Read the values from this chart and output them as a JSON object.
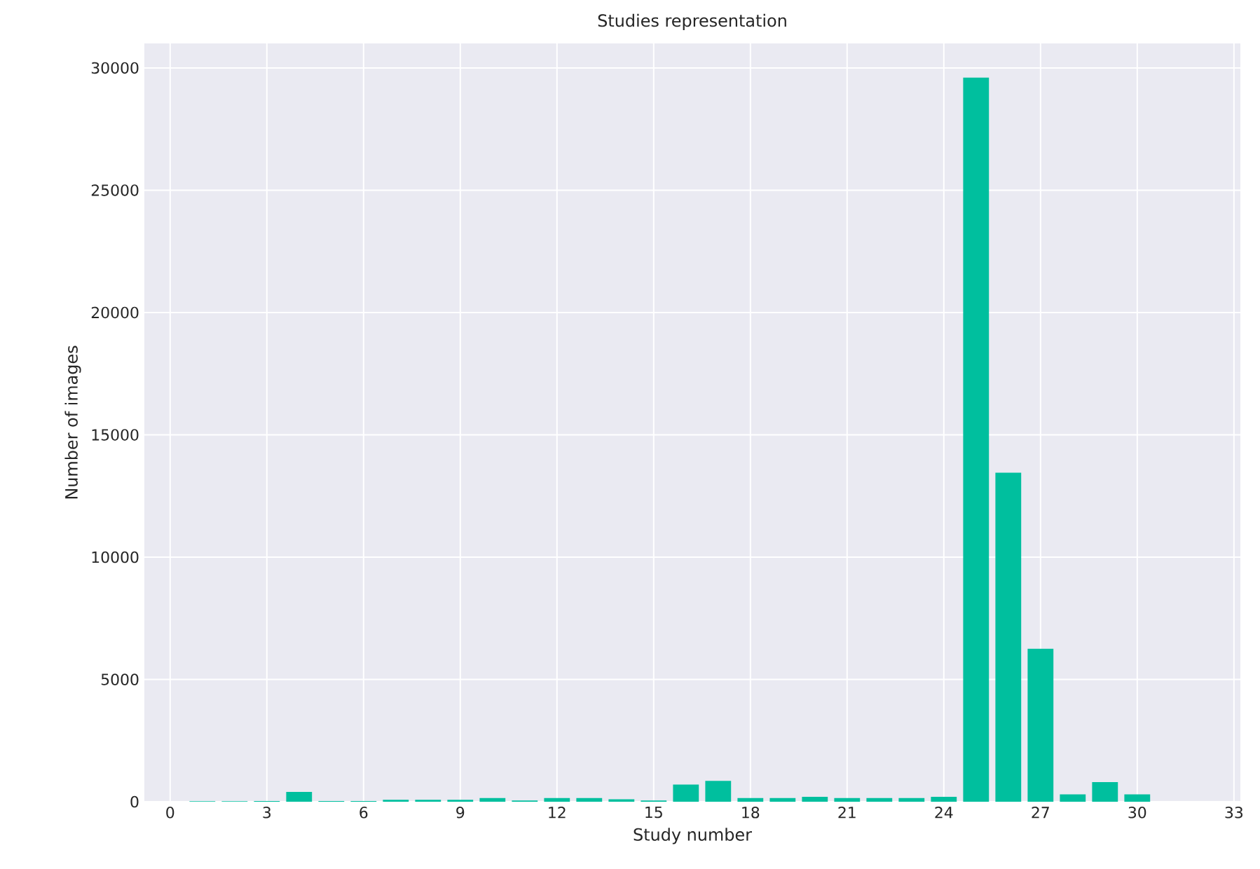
{
  "chart_data": {
    "type": "bar",
    "title": "Studies representation",
    "xlabel": "Study number",
    "ylabel": "Number of images",
    "x": [
      1,
      2,
      3,
      4,
      5,
      6,
      7,
      8,
      9,
      10,
      11,
      12,
      13,
      14,
      15,
      16,
      17,
      18,
      19,
      20,
      21,
      22,
      23,
      24,
      25,
      26,
      27,
      28,
      29,
      30
    ],
    "values": [
      20,
      20,
      30,
      400,
      30,
      30,
      80,
      80,
      80,
      150,
      50,
      150,
      150,
      100,
      50,
      700,
      850,
      150,
      150,
      200,
      150,
      150,
      150,
      200,
      29600,
      13450,
      6250,
      300,
      800,
      300
    ],
    "color": "#00bf9e",
    "xlim": [
      -0.8,
      33.2
    ],
    "ylim": [
      0,
      31000
    ],
    "xticks": [
      0,
      3,
      6,
      9,
      12,
      15,
      18,
      21,
      24,
      27,
      30,
      33
    ],
    "yticks": [
      0,
      5000,
      10000,
      15000,
      20000,
      25000,
      30000
    ],
    "grid": true
  }
}
